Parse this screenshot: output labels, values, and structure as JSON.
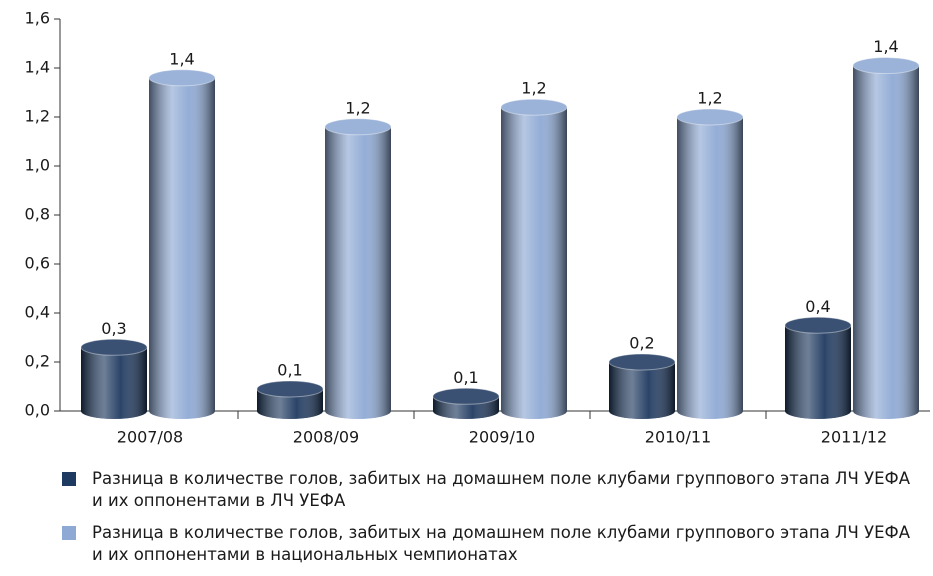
{
  "chart_data": {
    "type": "bar",
    "categories": [
      "2007/08",
      "2008/09",
      "2009/10",
      "2010/11",
      "2011/12"
    ],
    "series": [
      {
        "name": "Разница в количестве голов, забитых на домашнем поле клубами группового этапа ЛЧ УЕФА и их оппонентами в ЛЧ УЕФА",
        "color": "#1f3a60",
        "values": [
          0.26,
          0.09,
          0.06,
          0.2,
          0.35
        ],
        "value_labels": [
          "0,3",
          "0,1",
          "0,1",
          "0,2",
          "0,4"
        ]
      },
      {
        "name": "Разница в количестве голов, забитых на домашнем поле клубами группового этапа ЛЧ УЕФА и их оппонентами в национальных чемпионатах",
        "color": "#8ea9d4",
        "values": [
          1.36,
          1.16,
          1.24,
          1.2,
          1.41
        ],
        "value_labels": [
          "1,4",
          "1,2",
          "1,2",
          "1,2",
          "1,4"
        ]
      }
    ],
    "ylim": [
      0,
      1.6
    ],
    "yticks": [
      {
        "value": 0,
        "label": "0,0"
      },
      {
        "value": 0.2,
        "label": "0,2"
      },
      {
        "value": 0.4,
        "label": "0,4"
      },
      {
        "value": 0.6,
        "label": "0,6"
      },
      {
        "value": 0.8,
        "label": "0,8"
      },
      {
        "value": 1.0,
        "label": "1,0"
      },
      {
        "value": 1.2,
        "label": "1,2"
      },
      {
        "value": 1.4,
        "label": "1,4"
      },
      {
        "value": 1.6,
        "label": "1,6"
      }
    ]
  }
}
